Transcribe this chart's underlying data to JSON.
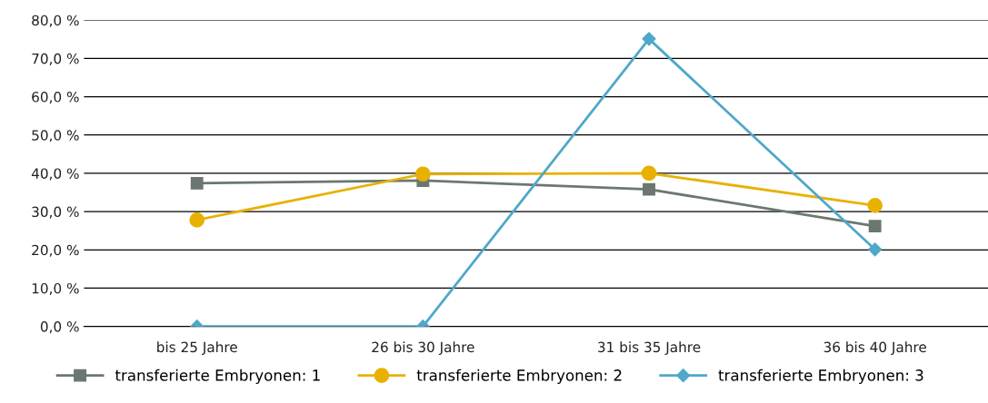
{
  "chart_data": {
    "type": "line",
    "categories": [
      "bis 25 Jahre",
      "26 bis 30 Jahre",
      "31 bis 35 Jahre",
      "36 bis 40 Jahre"
    ],
    "series": [
      {
        "name": "transferierte Embryonen: 1",
        "color": "#6b7770",
        "marker": "square",
        "values": [
          37.4,
          38.1,
          35.8,
          26.2
        ]
      },
      {
        "name": "transferierte Embryonen: 2",
        "color": "#e8b100",
        "marker": "circle",
        "values": [
          27.8,
          39.8,
          40.0,
          31.6
        ]
      },
      {
        "name": "transferierte Embryonen: 3",
        "color": "#4fa8c9",
        "marker": "diamond",
        "values": [
          0,
          0,
          75.1,
          20.1
        ]
      }
    ],
    "ylim": [
      0,
      80
    ],
    "yticks": [
      {
        "value": 0,
        "label": "0,0 %"
      },
      {
        "value": 10,
        "label": "10,0 %"
      },
      {
        "value": 20,
        "label": "20,0 %"
      },
      {
        "value": 30,
        "label": "30,0 %"
      },
      {
        "value": 40,
        "label": "40,0 %"
      },
      {
        "value": 50,
        "label": "50,0 %"
      },
      {
        "value": 60,
        "label": "60,0 %"
      },
      {
        "value": 70,
        "label": "70,0 %"
      },
      {
        "value": 80,
        "label": "80,0 %"
      }
    ],
    "grid": "y",
    "legend": "bottom",
    "line_style": "solid"
  }
}
